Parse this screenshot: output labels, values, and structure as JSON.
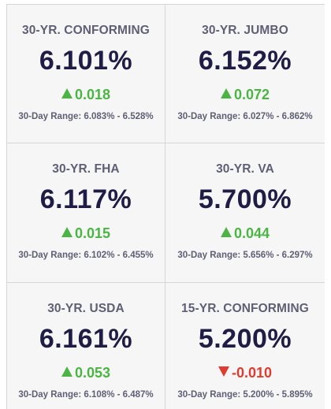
{
  "range_prefix": "30-Day Range:",
  "colors": {
    "label": "#5e5f75",
    "rate": "#1f1d46",
    "up": "#4bb543",
    "down": "#e03b2f",
    "background": "#f6f6f7"
  },
  "cards": [
    {
      "label": "30-YR. CONFORMING",
      "rate": "6.101%",
      "direction": "up",
      "direction_icon": "triangle-up-icon",
      "change": "0.018",
      "range": "6.083% - 6.528%"
    },
    {
      "label": "30-YR. JUMBO",
      "rate": "6.152%",
      "direction": "up",
      "direction_icon": "triangle-up-icon",
      "change": "0.072",
      "range": "6.027% - 6.862%"
    },
    {
      "label": "30-YR. FHA",
      "rate": "6.117%",
      "direction": "up",
      "direction_icon": "triangle-up-icon",
      "change": "0.015",
      "range": "6.102% - 6.455%"
    },
    {
      "label": "30-YR. VA",
      "rate": "5.700%",
      "direction": "up",
      "direction_icon": "triangle-up-icon",
      "change": "0.044",
      "range": "5.656% - 6.297%"
    },
    {
      "label": "30-YR. USDA",
      "rate": "6.161%",
      "direction": "up",
      "direction_icon": "triangle-up-icon",
      "change": "0.053",
      "range": "6.108% - 6.487%"
    },
    {
      "label": "15-YR. CONFORMING",
      "rate": "5.200%",
      "direction": "down",
      "direction_icon": "triangle-down-icon",
      "change": "-0.010",
      "range": "5.200% - 5.895%"
    }
  ]
}
